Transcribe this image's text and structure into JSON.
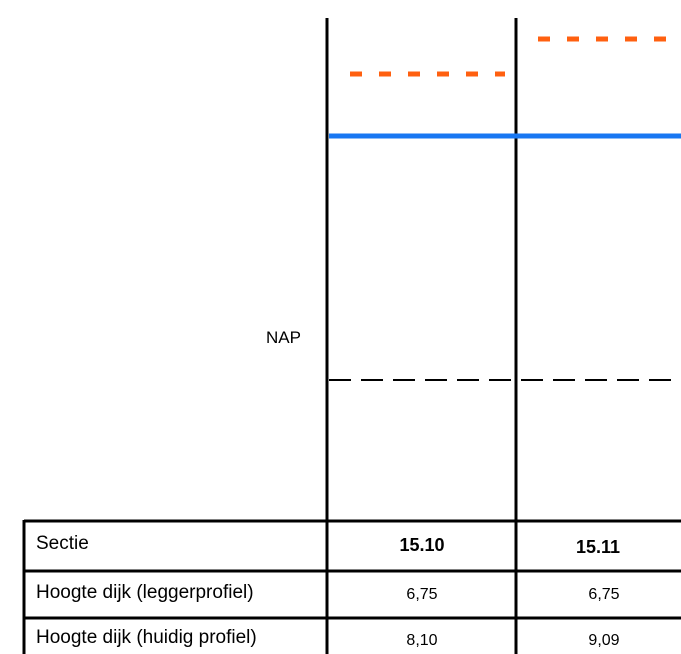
{
  "reference_level": {
    "label": "NAP"
  },
  "table": {
    "header": {
      "label": "Sectie",
      "columns": [
        "15.10",
        "15.11"
      ]
    },
    "rows": [
      {
        "label": "Hoogte dijk (leggerprofiel)",
        "values": [
          "6,75",
          "6,75"
        ]
      },
      {
        "label": "Hoogte dijk (huidig profiel)",
        "values": [
          "8,10",
          "9,09"
        ]
      }
    ]
  },
  "colors": {
    "lines": "#000000",
    "blue_line": "#1877f2",
    "orange_dashes": "#ff6010"
  }
}
